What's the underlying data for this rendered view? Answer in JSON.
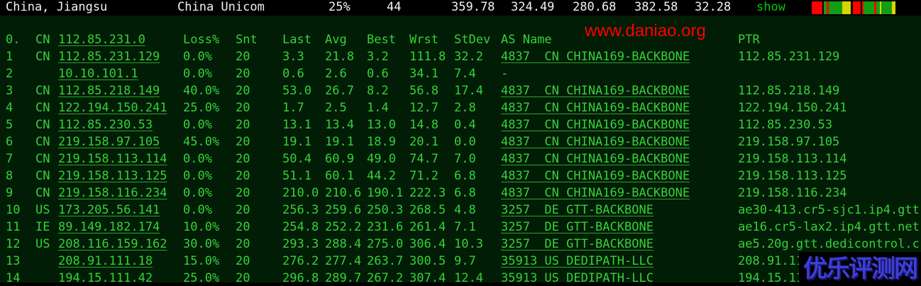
{
  "topbar": {
    "location": "China, Jiangsu",
    "isp": "China Unicom",
    "loss": "25%",
    "snt": "44",
    "last": "359.78",
    "avg": "324.49",
    "best": "280.68",
    "wrst": "382.58",
    "stdev": "32.28",
    "show_label": "show"
  },
  "ping_bar": {
    "colors": {
      "red": "#ff0000",
      "green": "#129d12",
      "yellow": "#d6d600",
      "gap": "#000000"
    },
    "segments": [
      {
        "c": "red",
        "w": 15
      },
      {
        "c": "gap",
        "w": 2
      },
      {
        "c": "green",
        "w": 4
      },
      {
        "c": "red",
        "w": 3
      },
      {
        "c": "green",
        "w": 19
      },
      {
        "c": "yellow",
        "w": 12
      },
      {
        "c": "gap",
        "w": 3
      },
      {
        "c": "red",
        "w": 11
      },
      {
        "c": "gap",
        "w": 2
      },
      {
        "c": "red",
        "w": 2
      },
      {
        "c": "green",
        "w": 15
      },
      {
        "c": "red",
        "w": 3
      },
      {
        "c": "green",
        "w": 5
      },
      {
        "c": "yellow",
        "w": 2
      },
      {
        "c": "green",
        "w": 15
      },
      {
        "c": "yellow",
        "w": 5
      }
    ]
  },
  "table": {
    "header": {
      "hop": "0.",
      "cc": "CN",
      "ip": "112.85.231.0",
      "loss": "Loss%",
      "snt": "Snt",
      "last": "Last",
      "avg": "Avg",
      "best": "Best",
      "wrst": "Wrst",
      "stdev": "StDev",
      "asname": "AS Name",
      "ptr": "PTR"
    },
    "rows": [
      {
        "hop": "1",
        "cc": "CN",
        "ip": "112.85.231.129",
        "loss": "0.0%",
        "snt": "20",
        "last": "3.3",
        "avg": "21.8",
        "best": "3.2",
        "wrst": "111.8",
        "stdev": "32.2",
        "as": "4837  CN CHINA169-BACKBONE",
        "as_link": true,
        "ptr": "112.85.231.129"
      },
      {
        "hop": "2",
        "cc": "",
        "ip": "10.10.101.1",
        "loss": "0.0%",
        "snt": "20",
        "last": "0.6",
        "avg": "2.6",
        "best": "0.6",
        "wrst": "34.1",
        "stdev": "7.4",
        "as": "-",
        "as_link": false,
        "ptr": ""
      },
      {
        "hop": "3",
        "cc": "CN",
        "ip": "112.85.218.149",
        "loss": "40.0%",
        "snt": "20",
        "last": "53.0",
        "avg": "26.7",
        "best": "8.2",
        "wrst": "56.8",
        "stdev": "17.4",
        "as": "4837  CN CHINA169-BACKBONE",
        "as_link": true,
        "ptr": "112.85.218.149"
      },
      {
        "hop": "4",
        "cc": "CN",
        "ip": "122.194.150.241",
        "loss": "25.0%",
        "snt": "20",
        "last": "1.7",
        "avg": "2.5",
        "best": "1.4",
        "wrst": "12.7",
        "stdev": "2.8",
        "as": "4837  CN CHINA169-BACKBONE",
        "as_link": true,
        "ptr": "122.194.150.241"
      },
      {
        "hop": "5",
        "cc": "CN",
        "ip": "112.85.230.53",
        "loss": "0.0%",
        "snt": "20",
        "last": "13.1",
        "avg": "13.4",
        "best": "13.0",
        "wrst": "14.8",
        "stdev": "0.4",
        "as": "4837  CN CHINA169-BACKBONE",
        "as_link": true,
        "ptr": "112.85.230.53"
      },
      {
        "hop": "6",
        "cc": "CN",
        "ip": "219.158.97.105",
        "loss": "45.0%",
        "snt": "20",
        "last": "19.1",
        "avg": "19.1",
        "best": "18.9",
        "wrst": "20.1",
        "stdev": "0.0",
        "as": "4837  CN CHINA169-BACKBONE",
        "as_link": true,
        "ptr": "219.158.97.105"
      },
      {
        "hop": "7",
        "cc": "CN",
        "ip": "219.158.113.114",
        "loss": "0.0%",
        "snt": "20",
        "last": "50.4",
        "avg": "60.9",
        "best": "49.0",
        "wrst": "74.7",
        "stdev": "7.0",
        "as": "4837  CN CHINA169-BACKBONE",
        "as_link": true,
        "ptr": "219.158.113.114"
      },
      {
        "hop": "8",
        "cc": "CN",
        "ip": "219.158.113.125",
        "loss": "0.0%",
        "snt": "20",
        "last": "51.1",
        "avg": "60.1",
        "best": "44.2",
        "wrst": "71.2",
        "stdev": "6.8",
        "as": "4837  CN CHINA169-BACKBONE",
        "as_link": true,
        "ptr": "219.158.113.125"
      },
      {
        "hop": "9",
        "cc": "CN",
        "ip": "219.158.116.234",
        "loss": "0.0%",
        "snt": "20",
        "last": "210.0",
        "avg": "210.6",
        "best": "190.1",
        "wrst": "222.3",
        "stdev": "6.8",
        "as": "4837  CN CHINA169-BACKBONE",
        "as_link": true,
        "ptr": "219.158.116.234"
      },
      {
        "hop": "10",
        "cc": "US",
        "ip": "173.205.56.141",
        "loss": "0.0%",
        "snt": "20",
        "last": "256.3",
        "avg": "259.6",
        "best": "250.3",
        "wrst": "268.5",
        "stdev": "4.8",
        "as": "3257  DE GTT-BACKBONE",
        "as_link": true,
        "ptr": "ae30-413.cr5-sjc1.ip4.gtt"
      },
      {
        "hop": "11",
        "cc": "IE",
        "ip": "89.149.182.174",
        "loss": "10.0%",
        "snt": "20",
        "last": "254.8",
        "avg": "252.2",
        "best": "231.6",
        "wrst": "261.4",
        "stdev": "7.1",
        "as": "3257  DE GTT-BACKBONE",
        "as_link": true,
        "ptr": "ae16.cr5-lax2.ip4.gtt.net"
      },
      {
        "hop": "12",
        "cc": "US",
        "ip": "208.116.159.162",
        "loss": "30.0%",
        "snt": "20",
        "last": "293.3",
        "avg": "288.4",
        "best": "275.0",
        "wrst": "306.4",
        "stdev": "10.3",
        "as": "3257  DE GTT-BACKBONE",
        "as_link": true,
        "ptr": "ae5.20g.gtt.dedicontrol.c"
      },
      {
        "hop": "13",
        "cc": "",
        "ip": "208.91.111.18",
        "loss": "15.0%",
        "snt": "20",
        "last": "276.2",
        "avg": "277.4",
        "best": "263.7",
        "wrst": "300.5",
        "stdev": "9.7",
        "as": "35913 US DEDIPATH-LLC",
        "as_link": true,
        "ptr": "208.91.11"
      },
      {
        "hop": "14",
        "cc": "",
        "ip": "194.15.111.42",
        "loss": "25.0%",
        "snt": "20",
        "last": "296.8",
        "avg": "289.7",
        "best": "267.2",
        "wrst": "307.4",
        "stdev": "12.4",
        "as": "35913 US DEDIPATH-LLC",
        "as_link": true,
        "ptr": "194.15.11"
      }
    ]
  },
  "watermarks": {
    "red_text": "www.daniao.org",
    "blue_text": "优乐评测网"
  },
  "colors": {
    "background": "#011d06",
    "topbar_bg": "#000000",
    "topbar_text": "#f2f2f2",
    "body_text_green": "#38d038",
    "show_green": "#00cc00",
    "watermark_red": "#fe0000",
    "watermark_blue": "#3e3ed8"
  }
}
